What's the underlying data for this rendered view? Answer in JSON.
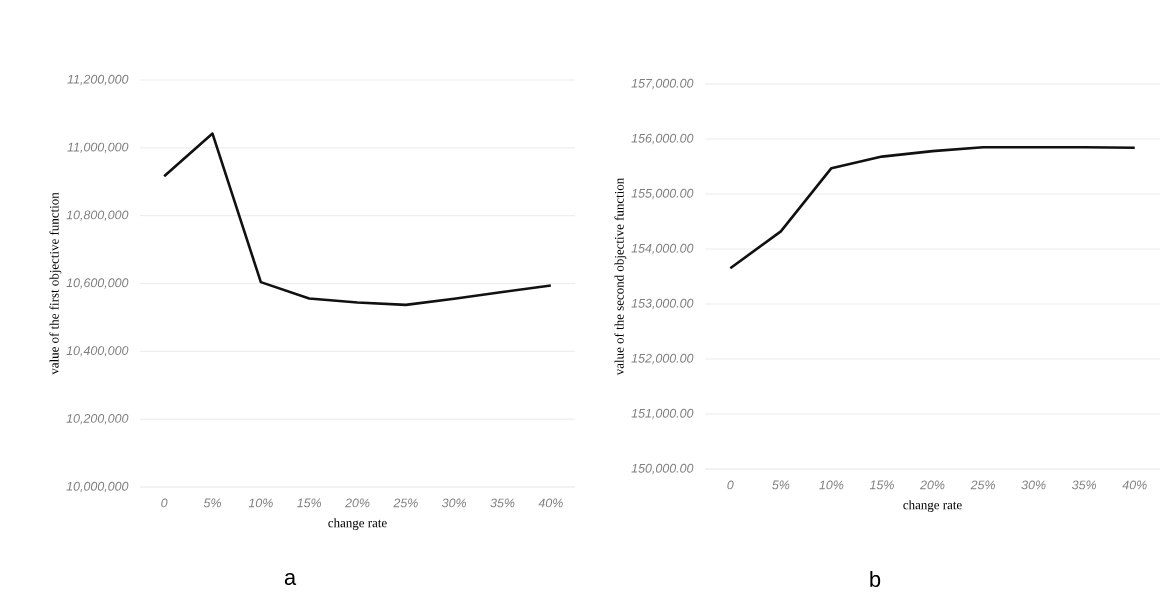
{
  "chart_data": [
    {
      "type": "line",
      "xlabel": "change rate",
      "ylabel": "value of the first objective function",
      "categories": [
        "0",
        "5%",
        "10%",
        "15%",
        "20%",
        "25%",
        "30%",
        "35%",
        "40%"
      ],
      "values": [
        10916000,
        11042000,
        10604000,
        10556000,
        10544000,
        10537000,
        10555000,
        10575000,
        10594000
      ],
      "color": "#111111",
      "ylim": [
        10000000,
        11200000
      ],
      "yticks": [
        {
          "value": 10000000,
          "label": "10,000,000"
        },
        {
          "value": 10200000,
          "label": "10,200,000"
        },
        {
          "value": 10400000,
          "label": "10,400,000"
        },
        {
          "value": 10600000,
          "label": "10,600,000"
        },
        {
          "value": 10800000,
          "label": "10,800,000"
        },
        {
          "value": 11000000,
          "label": "11,000,000"
        },
        {
          "value": 11200000,
          "label": "11,200,000"
        }
      ],
      "grid": "y",
      "annotations": [
        "a"
      ]
    },
    {
      "type": "line",
      "xlabel": "change rate",
      "ylabel": "value of the second objective function",
      "categories": [
        "0",
        "5%",
        "10%",
        "15%",
        "20%",
        "25%",
        "30%",
        "35%",
        "40%"
      ],
      "values": [
        153650,
        154320,
        155470,
        155680,
        155780,
        155850,
        155850,
        155850,
        155840
      ],
      "color": "#111111",
      "ylim": [
        150000,
        157000
      ],
      "yticks": [
        {
          "value": 150000,
          "label": "150,000.00"
        },
        {
          "value": 151000,
          "label": "151,000.00"
        },
        {
          "value": 152000,
          "label": "152,000.00"
        },
        {
          "value": 153000,
          "label": "153,000.00"
        },
        {
          "value": 154000,
          "label": "154,000.00"
        },
        {
          "value": 155000,
          "label": "155,000.00"
        },
        {
          "value": 156000,
          "label": "156,000.00"
        },
        {
          "value": 157000,
          "label": "157,000.00"
        }
      ],
      "grid": "y",
      "annotations": [
        "b"
      ]
    }
  ]
}
